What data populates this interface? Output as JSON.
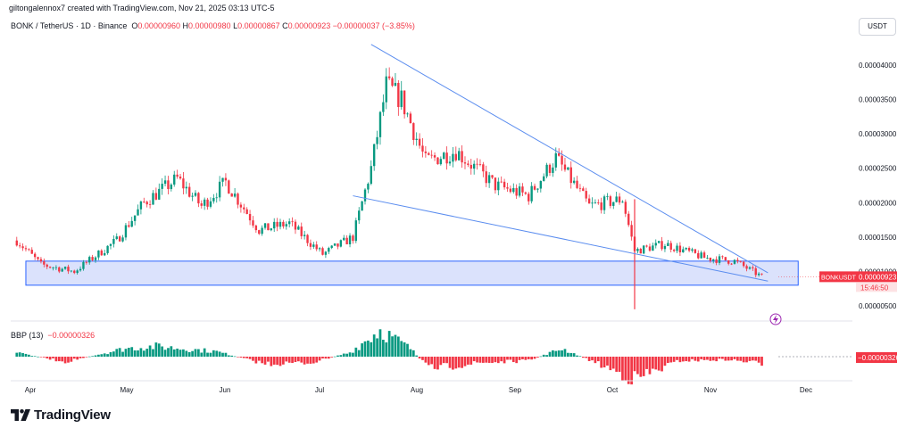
{
  "header": {
    "byline": "giltongalennox7 created with TradingView.com, Nov 21, 2025 03:13 UTC-5",
    "symbol": "BONK / TetherUS · 1D · Binance",
    "o_label": "O",
    "o": "0.00000960",
    "h_label": "H",
    "h": "0.00000980",
    "l_label": "L",
    "l": "0.00000867",
    "c_label": "C",
    "c": "0.00000923",
    "change": "−0.00000037 (−3.85%)",
    "currency": "USDT"
  },
  "indicator": {
    "name": "BBP (13)",
    "value": "−0.00000326",
    "tag": "−0.00000326"
  },
  "price_tag": {
    "symbol": "BONKUSDT",
    "price": "0.00000923",
    "countdown": "15:46:50"
  },
  "brand": {
    "name": "TradingView",
    "icon": "tradingview-logo-icon"
  },
  "icons": {
    "lightning": "lightning-icon"
  },
  "colors": {
    "up": "#089981",
    "down": "#f23645",
    "line": "#5b8def",
    "zone": "#c7d3fb",
    "zone_border": "#2962ff"
  },
  "chart_data": [
    {
      "type": "candlestick",
      "title": "BONK / TetherUS · 1D · Binance",
      "xlabel": "",
      "ylabel": "",
      "x_ticks": [
        "Apr",
        "May",
        "Jun",
        "Jul",
        "Aug",
        "Sep",
        "Oct",
        "Nov",
        "Dec"
      ],
      "y_ticks": [
        "0.00000500",
        "0.00001000",
        "0.00001500",
        "0.00002000",
        "0.00002500",
        "0.00003000",
        "0.00003500",
        "0.00004000"
      ],
      "ylim": [
        3.5e-06,
        4.3e-06
      ],
      "grid": false,
      "series": [
        {
          "name": "BONK / TetherUS",
          "points": [
            {
              "date": "2025-03-20",
              "close": 1.45e-05
            },
            {
              "date": "2025-03-28",
              "close": 1.1e-05
            },
            {
              "date": "2025-04-08",
              "close": 1e-05
            },
            {
              "date": "2025-04-22",
              "close": 1.45e-05
            },
            {
              "date": "2025-05-01",
              "close": 2e-05
            },
            {
              "date": "2025-05-12",
              "close": 2.35e-05
            },
            {
              "date": "2025-05-20",
              "close": 1.95e-05
            },
            {
              "date": "2025-05-28",
              "close": 2.3e-05
            },
            {
              "date": "2025-06-08",
              "close": 1.6e-05
            },
            {
              "date": "2025-06-18",
              "close": 1.7e-05
            },
            {
              "date": "2025-06-29",
              "close": 1.25e-05
            },
            {
              "date": "2025-07-09",
              "close": 1.5e-05
            },
            {
              "date": "2025-07-15",
              "close": 2.5e-05
            },
            {
              "date": "2025-07-20",
              "close": 3.7e-05
            },
            {
              "date": "2025-07-25",
              "close": 3.5e-05
            },
            {
              "date": "2025-08-02",
              "close": 2.6e-05
            },
            {
              "date": "2025-08-12",
              "close": 2.75e-05
            },
            {
              "date": "2025-08-25",
              "close": 2.25e-05
            },
            {
              "date": "2025-09-05",
              "close": 2.1e-05
            },
            {
              "date": "2025-09-14",
              "close": 2.65e-05
            },
            {
              "date": "2025-09-25",
              "close": 1.95e-05
            },
            {
              "date": "2025-10-06",
              "close": 2.05e-05
            },
            {
              "date": "2025-10-10",
              "close": 1.3e-05
            },
            {
              "date": "2025-10-20",
              "close": 1.4e-05
            },
            {
              "date": "2025-11-02",
              "close": 1.2e-05
            },
            {
              "date": "2025-11-12",
              "close": 1.15e-05
            },
            {
              "date": "2025-11-21",
              "close": 9.23e-06
            }
          ]
        }
      ],
      "trendlines": [
        {
          "name": "",
          "from": {
            "date": "2025-07-15",
            "value": 4.3e-05
          },
          "to": {
            "date": "2025-11-23",
            "value": 9.8e-06
          }
        },
        {
          "name": "",
          "from": {
            "date": "2025-07-09",
            "value": 2.1e-05
          },
          "to": {
            "date": "2025-11-23",
            "value": 8.6e-06
          }
        }
      ],
      "zone": {
        "name": "",
        "from_date": "2025-03-23",
        "to_date": "2025-12-03",
        "low": 8e-06,
        "high": 1.15e-05
      },
      "annotations": [
        {
          "text": "0.00000923",
          "label": "BONKUSDT"
        }
      ]
    },
    {
      "type": "bar",
      "title": "BBP (13)",
      "ylim": [
        -1.2e-05,
        1.6e-05
      ],
      "tick": "0.00000000",
      "series": [
        {
          "name": "BBP (13)",
          "points": [
            {
              "date": "2025-03-20",
              "value": 2e-06
            },
            {
              "date": "2025-04-05",
              "value": -2.5e-06
            },
            {
              "date": "2025-04-25",
              "value": 4e-06
            },
            {
              "date": "2025-05-05",
              "value": 5e-06
            },
            {
              "date": "2025-05-25",
              "value": 2.5e-06
            },
            {
              "date": "2025-06-10",
              "value": -3.5e-06
            },
            {
              "date": "2025-06-25",
              "value": -3e-06
            },
            {
              "date": "2025-07-08",
              "value": 2e-06
            },
            {
              "date": "2025-07-18",
              "value": 1.3e-05
            },
            {
              "date": "2025-07-28",
              "value": 4e-06
            },
            {
              "date": "2025-08-03",
              "value": -6e-06
            },
            {
              "date": "2025-08-20",
              "value": -3e-06
            },
            {
              "date": "2025-09-05",
              "value": -2e-06
            },
            {
              "date": "2025-09-16",
              "value": 4e-06
            },
            {
              "date": "2025-09-28",
              "value": -3.5e-06
            },
            {
              "date": "2025-10-10",
              "value": -1.1e-05
            },
            {
              "date": "2025-10-25",
              "value": -2e-06
            },
            {
              "date": "2025-11-10",
              "value": -1.5e-06
            },
            {
              "date": "2025-11-21",
              "value": -3.26e-06
            }
          ]
        }
      ]
    }
  ]
}
